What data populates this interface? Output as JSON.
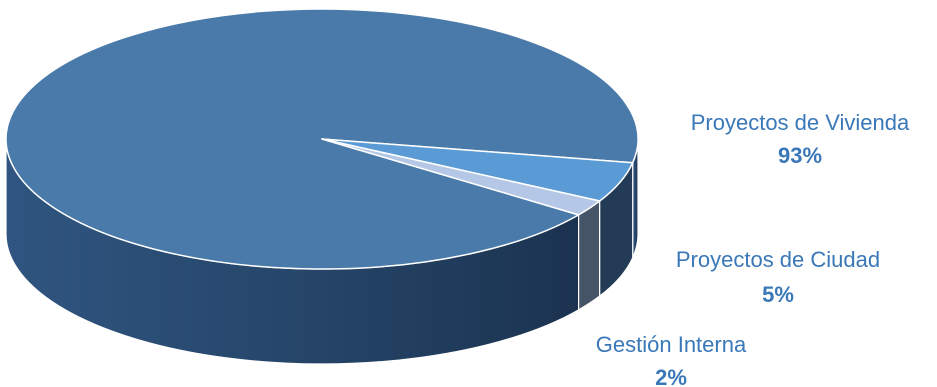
{
  "chart_data": {
    "type": "pie",
    "style": "3d",
    "title": "",
    "slices": [
      {
        "label": "Proyectos de Vivienda",
        "value": 93,
        "value_label": "93%",
        "color": "#4a7aaa",
        "label_color": "#3a78b8"
      },
      {
        "label": "Proyectos de Ciudad",
        "value": 5,
        "value_label": "5%",
        "color": "#5b9bd5",
        "label_color": "#3a78b8"
      },
      {
        "label": "Gestión Interna",
        "value": 2,
        "value_label": "2%",
        "color": "#b4c7e7",
        "label_color": "#3a78b8"
      }
    ],
    "legend": "none"
  }
}
